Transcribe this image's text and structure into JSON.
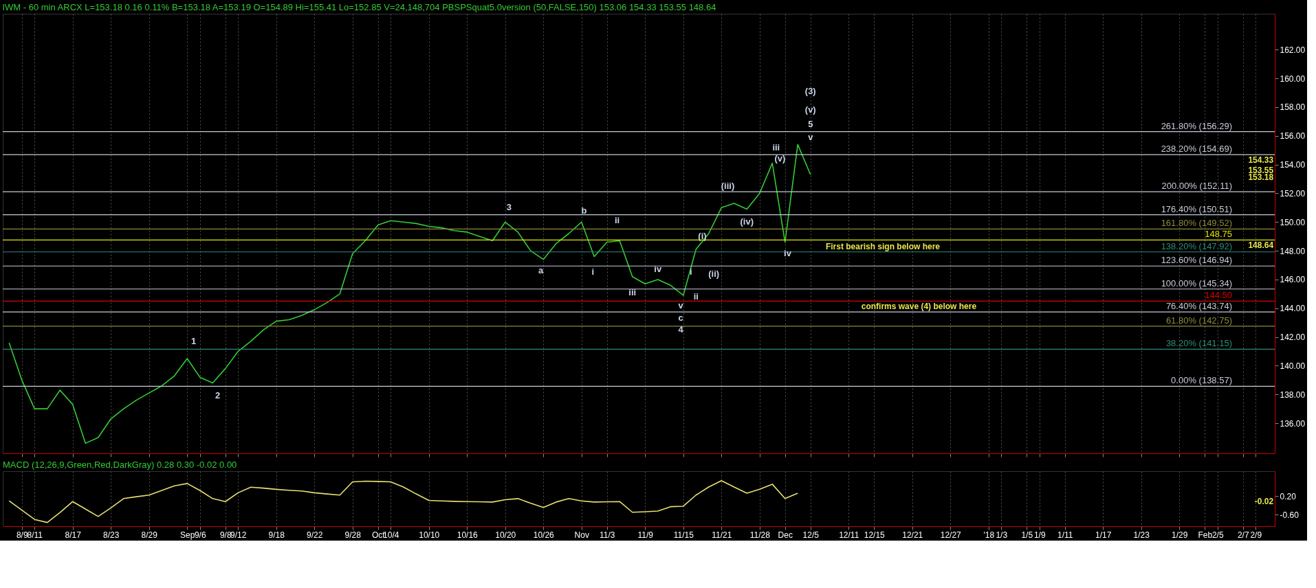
{
  "chart_data": [
    {
      "type": "line",
      "title": "IWM - 60 min  ARCX  L=153.18  0.16  0.11%  B=153.18  A=153.19  O=154.89  Hi=155.41  Lo=152.85  V=24,148,704  PBSPSquat5.0version (50,FALSE,150)  153.06  154.33  153.55  148.64",
      "categories": [
        null,
        null,
        null,
        null,
        null,
        null,
        null,
        null,
        null,
        null,
        null,
        null,
        null,
        null,
        null,
        null,
        null,
        null,
        null,
        null,
        null,
        null,
        null,
        null,
        null,
        null,
        null,
        null,
        null,
        null,
        null,
        null,
        null,
        null,
        null,
        null,
        null,
        null,
        null,
        null,
        null,
        null,
        null,
        null,
        null,
        null,
        null,
        null,
        null,
        null,
        null,
        null,
        null,
        null,
        null,
        null,
        null,
        null,
        null,
        null,
        null,
        null,
        null,
        null,
        null,
        null,
        null,
        null,
        null,
        null,
        null,
        null,
        null,
        null,
        null,
        null,
        null,
        null,
        null,
        null,
        null,
        null,
        null,
        null,
        null,
        null,
        null,
        null,
        null,
        null,
        null,
        null,
        null,
        null,
        null,
        null,
        null,
        null,
        null,
        null
      ],
      "series": [
        {
          "color": "#33cc33",
          "values": [
            141.6,
            139.0,
            137.0,
            137.0,
            138.3,
            137.3,
            134.6,
            135.0,
            136.3,
            137.0,
            137.6,
            138.1,
            138.6,
            139.3,
            140.5,
            139.2,
            138.8,
            139.8,
            141.0,
            141.7,
            142.5,
            143.1,
            143.2,
            143.5,
            143.9,
            144.4,
            145.0,
            147.8,
            148.7,
            149.8,
            150.1,
            150.0,
            149.9,
            149.7,
            149.6,
            149.4,
            149.3,
            149.0,
            148.7,
            150.0,
            149.3,
            148.0,
            147.4,
            148.5,
            149.2,
            150.0,
            147.6,
            148.6,
            148.7,
            146.2,
            145.7,
            146.0,
            145.6,
            144.9,
            148.1,
            149.2,
            151.0,
            151.3,
            150.9,
            152.0,
            154.1,
            148.6,
            155.4,
            153.3,
            null,
            null,
            null,
            null,
            null,
            null,
            null,
            null,
            null,
            null,
            null,
            null,
            null,
            null,
            null,
            null,
            null,
            null,
            null,
            null,
            null,
            null,
            null,
            null,
            null,
            null,
            null,
            null,
            null,
            null,
            null,
            null,
            null,
            null,
            null,
            null
          ]
        }
      ],
      "ylim": [
        133.9,
        164.5
      ],
      "yticks": [
        {
          "value": 136,
          "label": "136.00"
        },
        {
          "value": 138,
          "label": "138.00"
        },
        {
          "value": 140,
          "label": "140.00"
        },
        {
          "value": 142,
          "label": "142.00"
        },
        {
          "value": 144,
          "label": "144.00"
        },
        {
          "value": 146,
          "label": "146.00"
        },
        {
          "value": 148,
          "label": "148.00"
        },
        {
          "value": 150,
          "label": "150.00"
        },
        {
          "value": 152,
          "label": "152.00"
        },
        {
          "value": 154,
          "label": "154.00"
        },
        {
          "value": 156,
          "label": "156.00"
        },
        {
          "value": 158,
          "label": "158.00"
        },
        {
          "value": 160,
          "label": "160.00"
        },
        {
          "value": 162,
          "label": "162.00"
        }
      ],
      "tick_labels": "y",
      "grid": "x",
      "marker": "none",
      "line_style": "solid",
      "ref_lines": [
        {
          "axis": "y",
          "value": 156.29,
          "label": "261.80% (156.29)",
          "color": "#c8ccd8"
        },
        {
          "axis": "y",
          "value": 154.69,
          "label": "238.20% (154.69)",
          "color": "#c8ccd8"
        },
        {
          "axis": "y",
          "value": 152.11,
          "label": "200.00% (152.11)",
          "color": "#c8ccd8"
        },
        {
          "axis": "y",
          "value": 150.51,
          "label": "176.40% (150.51)",
          "color": "#c8ccd8"
        },
        {
          "axis": "y",
          "value": 149.52,
          "label": "161.80% (149.52)",
          "color": "#8f8a3c"
        },
        {
          "axis": "y",
          "value": 148.75,
          "label": "148.75",
          "color": "#e6e600"
        },
        {
          "axis": "y",
          "value": 147.92,
          "label": "138.20% (147.92)",
          "color": "#2e8b7a"
        },
        {
          "axis": "y",
          "value": 146.94,
          "label": "123.60% (146.94)",
          "color": "#c8ccd8"
        },
        {
          "axis": "y",
          "value": 145.34,
          "label": "100.00% (145.34)",
          "color": "#c8ccd8"
        },
        {
          "axis": "y",
          "value": 144.5,
          "label": "144.50",
          "color": "#dd0000"
        },
        {
          "axis": "y",
          "value": 143.74,
          "label": "76.40% (143.74)",
          "color": "#c8ccd8"
        },
        {
          "axis": "y",
          "value": 142.75,
          "label": "61.80% (142.75)",
          "color": "#8f8a3c"
        },
        {
          "axis": "y",
          "value": 141.15,
          "label": "38.20% (141.15)",
          "color": "#2e8b7a"
        },
        {
          "axis": "y",
          "value": 138.57,
          "label": "0.00% (138.57)",
          "color": "#c8ccd8"
        }
      ],
      "annotations": [
        "1",
        "2",
        "3",
        "a",
        "b",
        "i",
        "ii",
        "iii",
        "iv",
        "v",
        "c",
        "4",
        "i",
        "ii",
        "(i)",
        "(ii)",
        "(iii)",
        "(iv)",
        "iii",
        "(v)",
        "iv",
        "v",
        "5",
        "(v)",
        "(3)",
        "First bearish sign below here",
        "confirms wave (4) below here",
        "154.33",
        "153.55",
        "153.18",
        "148.64"
      ]
    },
    {
      "type": "line",
      "title": "MACD (12,26,9,Green,Red,DarkGray)  0.28  0.30  -0.02  0.00",
      "categories": [
        null,
        "8/9",
        "8/11",
        null,
        null,
        "8/17",
        null,
        null,
        "8/23",
        null,
        null,
        "8/29",
        null,
        null,
        "Sep",
        "9/6",
        null,
        "9/8",
        "9/12",
        null,
        null,
        "9/18",
        null,
        null,
        "9/22",
        null,
        null,
        "9/28",
        null,
        "Oct",
        "10/4",
        null,
        null,
        "10/10",
        null,
        null,
        "10/16",
        null,
        null,
        "10/20",
        null,
        null,
        "10/26",
        null,
        null,
        "Nov",
        null,
        "11/3",
        null,
        null,
        "11/9",
        null,
        null,
        "11/15",
        null,
        null,
        "11/21",
        null,
        null,
        "11/28",
        null,
        "Dec",
        null,
        "12/5",
        null,
        null,
        "12/11",
        null,
        "12/15",
        null,
        null,
        "12/21",
        null,
        null,
        "12/27",
        null,
        null,
        "'18",
        "1/3",
        null,
        "1/5",
        "1/9",
        null,
        "1/11",
        null,
        null,
        "1/17",
        null,
        null,
        "1/23",
        null,
        null,
        "1/29",
        null,
        "Feb",
        "2/5",
        null,
        "2/7",
        "2/9",
        null
      ],
      "series": [
        {
          "color": "#e8e070",
          "values": [
            0.0,
            -0.4,
            -0.8,
            -0.93,
            -0.5,
            -0.03,
            -0.35,
            -0.67,
            -0.3,
            0.1,
            0.18,
            0.25,
            0.45,
            0.65,
            0.75,
            0.45,
            0.1,
            -0.03,
            0.35,
            0.59,
            0.55,
            0.5,
            0.46,
            0.43,
            0.35,
            0.3,
            0.25,
            0.82,
            0.85,
            0.84,
            0.82,
            0.6,
            0.3,
            0.02,
            0.0,
            -0.02,
            -0.03,
            -0.04,
            -0.05,
            0.05,
            0.1,
            -0.1,
            -0.28,
            -0.05,
            0.1,
            0.0,
            -0.05,
            -0.04,
            -0.03,
            -0.49,
            -0.47,
            -0.44,
            -0.25,
            -0.23,
            0.25,
            0.6,
            0.87,
            0.6,
            0.33,
            0.5,
            0.72,
            0.1,
            0.33,
            null,
            null,
            null,
            null,
            null,
            null,
            null,
            null,
            null,
            null,
            null,
            null,
            null,
            null,
            null,
            null,
            null,
            null,
            null,
            null,
            null,
            null,
            null,
            null,
            null,
            null,
            null,
            null,
            null,
            null,
            null,
            null,
            null,
            null,
            null,
            null,
            null
          ]
        }
      ],
      "ylim": [
        -1.09,
        1.28
      ],
      "yticks": [
        {
          "value": 0.2,
          "label": "0.20"
        },
        {
          "value": -0.6,
          "label": "-0.60"
        }
      ],
      "grid": "x",
      "marker": "none",
      "line_style": "solid",
      "annotations": [
        "-0.02"
      ]
    }
  ]
}
